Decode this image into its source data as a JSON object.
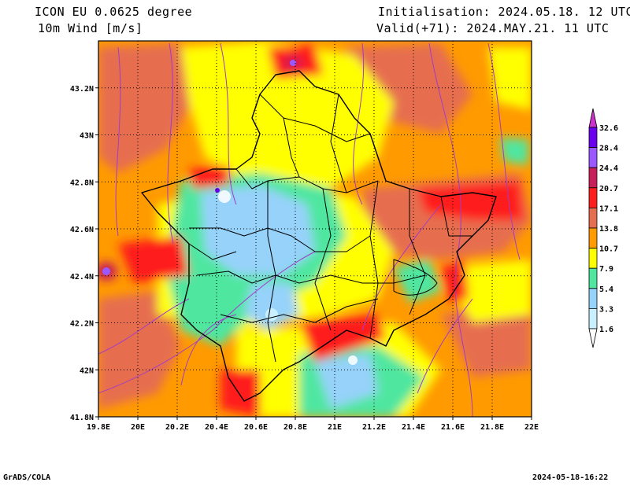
{
  "header": {
    "model": "ICON EU 0.0625 degree",
    "field": "10m Wind [m/s]",
    "init": "Initialisation: 2024.05.18. 12 UTC",
    "valid": "Valid(+71): 2024.MAY.21. 11 UTC"
  },
  "footer": {
    "credit": "GrADS/COLA",
    "timestamp": "2024-05-18-16:22"
  },
  "axes": {
    "lon_ticks": [
      "19.8E",
      "20E",
      "20.2E",
      "20.4E",
      "20.6E",
      "20.8E",
      "21E",
      "21.2E",
      "21.4E",
      "21.6E",
      "21.8E",
      "22E"
    ],
    "lat_ticks": [
      "41.8N",
      "42N",
      "42.2N",
      "42.4N",
      "42.6N",
      "42.8N",
      "43N",
      "43.2N"
    ],
    "lon_range": [
      19.8,
      22.0
    ],
    "lat_range": [
      41.8,
      43.4
    ]
  },
  "colorbar": {
    "levels": [
      "1.6",
      "3.3",
      "5.4",
      "7.9",
      "10.7",
      "13.8",
      "17.1",
      "20.7",
      "24.4",
      "28.4",
      "32.6"
    ],
    "colors": [
      "#ffffff",
      "#c8f0ff",
      "#96d2fa",
      "#50e6a0",
      "#ffff00",
      "#ff9a00",
      "#e66e50",
      "#ff1e1e",
      "#c81e5a",
      "#9b58ff",
      "#6a00ee",
      "#cc33cc"
    ]
  },
  "palette": {
    "calm": "#96d2fa",
    "light": "#50e6a0",
    "moderate": "#ffff00",
    "fresh": "#ff9a00",
    "strong": "#e66e50",
    "gale": "#ff1e1e",
    "storm": "#c81e5a",
    "streamline": "#a03cc8"
  }
}
